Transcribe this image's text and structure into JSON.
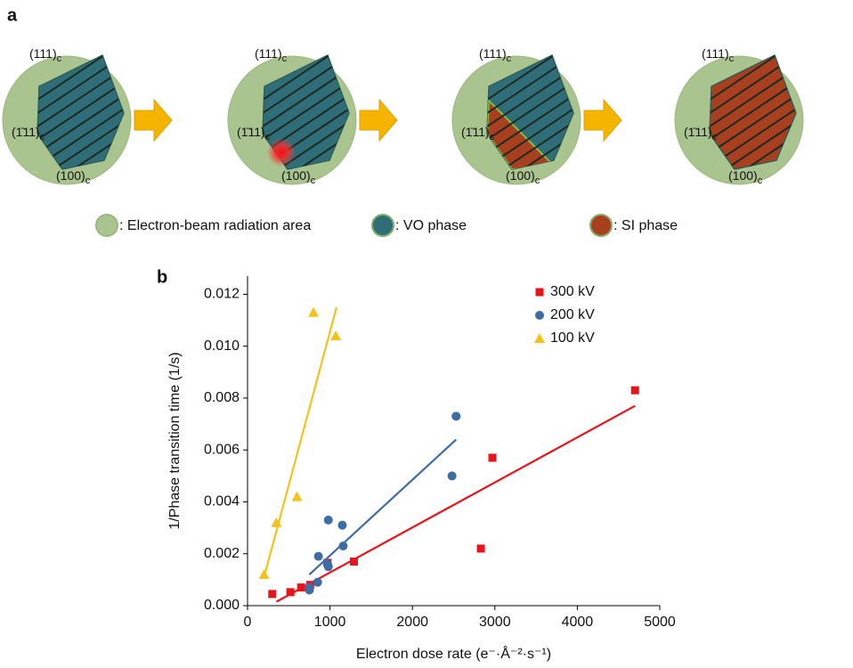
{
  "panel_a": {
    "label": "a",
    "facets": [
      {
        "index": "(111)",
        "sub": "c"
      },
      {
        "index": "(1̄11)",
        "sub": "c"
      },
      {
        "index": "(100)",
        "sub": "c"
      }
    ],
    "legend": [
      ": Electron-beam radiation area",
      ": VO phase",
      ": SI phase"
    ]
  },
  "chart_data": {
    "type": "scatter",
    "panel_label": "b",
    "x_label": "Electron dose rate (e⁻·Å⁻²·s⁻¹)",
    "y_label": "1/Phase transition time (1/s)",
    "xlim": [
      0,
      5000
    ],
    "xticks": [
      0,
      1000,
      2000,
      3000,
      4000,
      5000
    ],
    "ylim": [
      0,
      0.0127
    ],
    "yticks": [
      {
        "value": 0,
        "label": "0.000"
      },
      {
        "value": 0.002,
        "label": "0.002"
      },
      {
        "value": 0.004,
        "label": "0.004"
      },
      {
        "value": 0.006,
        "label": "0.006"
      },
      {
        "value": 0.008,
        "label": "0.008"
      },
      {
        "value": 0.01,
        "label": "0.010"
      },
      {
        "value": 0.012,
        "label": "0.012"
      }
    ],
    "series": [
      {
        "name": "300 kV",
        "color": "#e8141c",
        "marker": "square",
        "x": [
          300,
          520,
          650,
          760,
          970,
          1290,
          2830,
          2970,
          4700
        ],
        "values": [
          0.00045,
          0.00052,
          0.0007,
          0.0008,
          0.00165,
          0.0017,
          0.0022,
          0.0057,
          0.0083
        ],
        "fit": {
          "x": [
            350,
            4700
          ],
          "y": [
            0.00015,
            0.0077
          ]
        }
      },
      {
        "name": "200 kV",
        "color": "#3d6ca6",
        "marker": "circle",
        "x": [
          750,
          750,
          850,
          860,
          970,
          980,
          980,
          1150,
          1160,
          2480,
          2530
        ],
        "values": [
          0.0006,
          0.0007,
          0.0009,
          0.0019,
          0.0016,
          0.0015,
          0.0033,
          0.0031,
          0.0023,
          0.005,
          0.0073
        ],
        "fit": {
          "x": [
            750,
            2530
          ],
          "y": [
            0.0012,
            0.0064
          ]
        }
      },
      {
        "name": "100 kV",
        "color": "#f5c21b",
        "marker": "triangle",
        "x": [
          200,
          350,
          600,
          800,
          1070
        ],
        "values": [
          0.0012,
          0.0032,
          0.0042,
          0.0113,
          0.0104
        ],
        "fit": {
          "x": [
            200,
            1080
          ],
          "y": [
            0.0011,
            0.0115
          ]
        }
      }
    ]
  }
}
